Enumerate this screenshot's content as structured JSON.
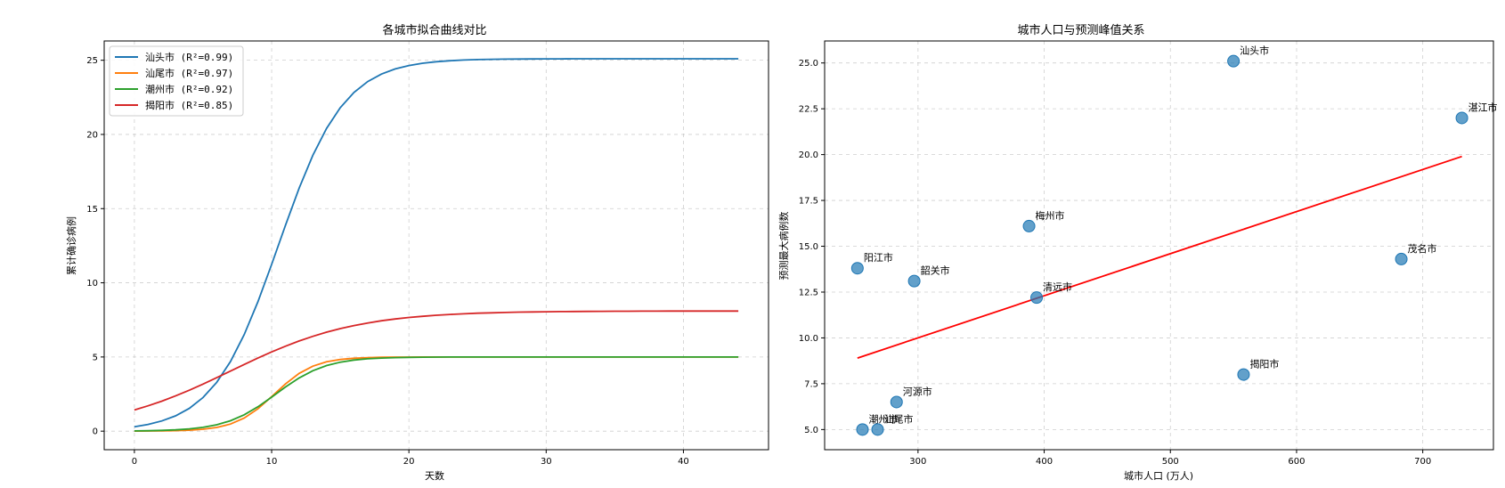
{
  "chart_data": [
    {
      "type": "line",
      "title": "各城市拟合曲线对比",
      "xlabel": "天数",
      "ylabel": "累计确诊病例",
      "xlim": [
        -2.2,
        46.2
      ],
      "ylim": [
        -1.25,
        26.3
      ],
      "xticks": [
        0,
        10,
        20,
        30,
        40
      ],
      "yticks": [
        0,
        5,
        10,
        15,
        20,
        25
      ],
      "grid": true,
      "legend_position": "upper-left",
      "x_range": [
        0,
        44
      ],
      "series": [
        {
          "name": "汕头市 (R²=0.99)",
          "color": "#1f77b4",
          "model": "logistic",
          "K": 25.1,
          "r": 0.42,
          "t0": 10.5
        },
        {
          "name": "汕尾市 (R²=0.97)",
          "color": "#ff7f0e",
          "model": "logistic",
          "K": 5.0,
          "r": 0.7,
          "t0": 10.2
        },
        {
          "name": "潮州市 (R²=0.92)",
          "color": "#2ca02c",
          "model": "logistic",
          "K": 5.0,
          "r": 0.55,
          "t0": 10.3
        },
        {
          "name": "揭阳市 (R²=0.85)",
          "color": "#d62728",
          "model": "logistic",
          "K": 8.1,
          "r": 0.22,
          "t0": 7.0
        }
      ]
    },
    {
      "type": "scatter",
      "title": "城市人口与预测峰值关系",
      "xlabel": "城市人口 (万人)",
      "ylabel": "预测最大病例数",
      "xlim": [
        226,
        756
      ],
      "ylim": [
        3.9,
        26.2
      ],
      "xticks": [
        300,
        400,
        500,
        600,
        700
      ],
      "yticks": [
        5.0,
        7.5,
        10.0,
        12.5,
        15.0,
        17.5,
        20.0,
        22.5,
        25.0
      ],
      "grid": true,
      "point_color": "#1f77b4",
      "trend_color": "#ff0000",
      "trend_line": {
        "x": [
          252,
          731
        ],
        "y": [
          8.9,
          19.9
        ]
      },
      "points": [
        {
          "label": "汕头市",
          "x": 550,
          "y": 25.1
        },
        {
          "label": "湛江市",
          "x": 731,
          "y": 22.0
        },
        {
          "label": "梅州市",
          "x": 388,
          "y": 16.1
        },
        {
          "label": "茂名市",
          "x": 683,
          "y": 14.3
        },
        {
          "label": "阳江市",
          "x": 252,
          "y": 13.8
        },
        {
          "label": "韶关市",
          "x": 297,
          "y": 13.1
        },
        {
          "label": "清远市",
          "x": 394,
          "y": 12.2
        },
        {
          "label": "揭阳市",
          "x": 558,
          "y": 8.0
        },
        {
          "label": "河源市",
          "x": 283,
          "y": 6.5
        },
        {
          "label": "潮州市",
          "x": 256,
          "y": 5.0
        },
        {
          "label": "汕尾市",
          "x": 268,
          "y": 5.0
        }
      ]
    }
  ]
}
